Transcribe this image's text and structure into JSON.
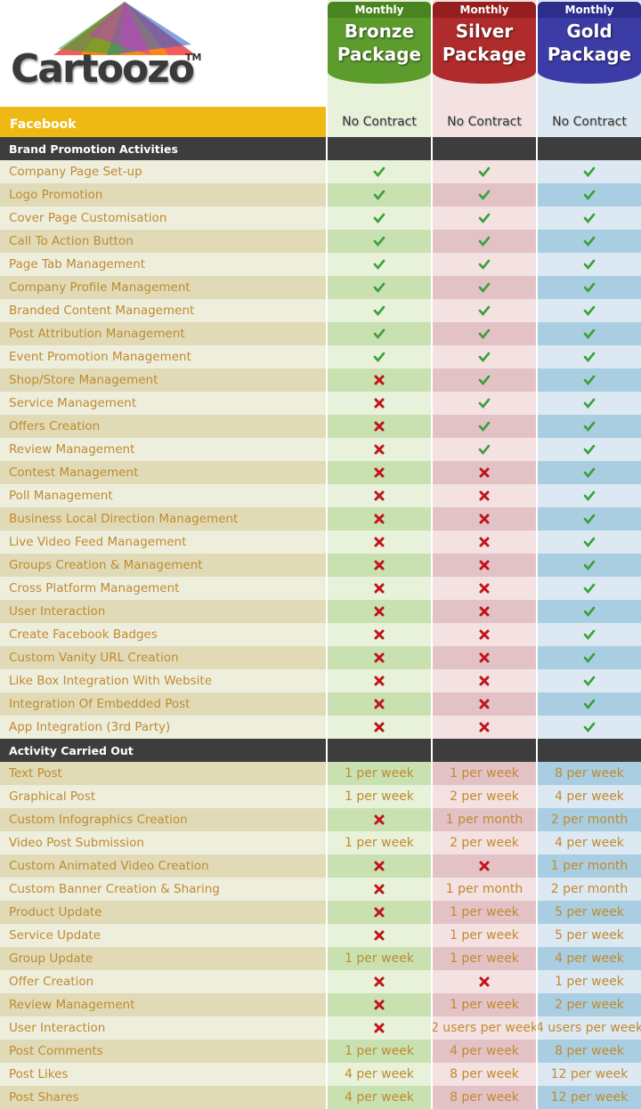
{
  "logo": {
    "name": "Cartoozo",
    "mark": "TM"
  },
  "platform": "Facebook",
  "packages": [
    {
      "period": "Monthly",
      "name": "Bronze Package",
      "contract": "No Contract"
    },
    {
      "period": "Monthly",
      "name": "Silver Package",
      "contract": "No Contract"
    },
    {
      "period": "Monthly",
      "name": "Gold Package",
      "contract": "No Contract"
    }
  ],
  "sections": [
    {
      "title": "Brand Promotion Activities",
      "rows": [
        {
          "label": "Company Page Set-up",
          "cells": [
            true,
            true,
            true
          ]
        },
        {
          "label": "Logo Promotion",
          "cells": [
            true,
            true,
            true
          ]
        },
        {
          "label": "Cover Page Customisation",
          "cells": [
            true,
            true,
            true
          ]
        },
        {
          "label": "Call To Action Button",
          "cells": [
            true,
            true,
            true
          ]
        },
        {
          "label": "Page Tab Management",
          "cells": [
            true,
            true,
            true
          ]
        },
        {
          "label": "Company Profile Management",
          "cells": [
            true,
            true,
            true
          ]
        },
        {
          "label": "Branded Content Management",
          "cells": [
            true,
            true,
            true
          ]
        },
        {
          "label": "Post Attribution Management",
          "cells": [
            true,
            true,
            true
          ]
        },
        {
          "label": "Event Promotion Management",
          "cells": [
            true,
            true,
            true
          ]
        },
        {
          "label": "Shop/Store Management",
          "cells": [
            false,
            true,
            true
          ]
        },
        {
          "label": "Service Management",
          "cells": [
            false,
            true,
            true
          ]
        },
        {
          "label": "Offers Creation",
          "cells": [
            false,
            true,
            true
          ]
        },
        {
          "label": "Review Management",
          "cells": [
            false,
            true,
            true
          ]
        },
        {
          "label": "Contest Management",
          "cells": [
            false,
            false,
            true
          ]
        },
        {
          "label": "Poll Management",
          "cells": [
            false,
            false,
            true
          ]
        },
        {
          "label": "Business Local Direction Management",
          "cells": [
            false,
            false,
            true
          ]
        },
        {
          "label": "Live Video Feed Management",
          "cells": [
            false,
            false,
            true
          ]
        },
        {
          "label": "Groups Creation & Management",
          "cells": [
            false,
            false,
            true
          ]
        },
        {
          "label": "Cross Platform Management",
          "cells": [
            false,
            false,
            true
          ]
        },
        {
          "label": "User Interaction",
          "cells": [
            false,
            false,
            true
          ]
        },
        {
          "label": "Create Facebook Badges",
          "cells": [
            false,
            false,
            true
          ]
        },
        {
          "label": "Custom Vanity URL Creation",
          "cells": [
            false,
            false,
            true
          ]
        },
        {
          "label": "Like Box Integration With Website",
          "cells": [
            false,
            false,
            true
          ]
        },
        {
          "label": "Integration Of Embedded Post",
          "cells": [
            false,
            false,
            true
          ]
        },
        {
          "label": "App Integration (3rd Party)",
          "cells": [
            false,
            false,
            true
          ]
        }
      ]
    },
    {
      "title": "Activity Carried Out",
      "rows": [
        {
          "label": "Text Post",
          "cells": [
            "1 per week",
            "1 per week",
            "8 per week"
          ]
        },
        {
          "label": "Graphical Post",
          "cells": [
            "1 per week",
            "2 per week",
            "4 per week"
          ]
        },
        {
          "label": "Custom Infographics Creation",
          "cells": [
            false,
            "1 per month",
            "2 per month"
          ]
        },
        {
          "label": "Video Post Submission",
          "cells": [
            "1 per week",
            "2 per week",
            "4 per week"
          ]
        },
        {
          "label": "Custom Animated Video Creation",
          "cells": [
            false,
            false,
            "1 per month"
          ]
        },
        {
          "label": "Custom Banner Creation & Sharing",
          "cells": [
            false,
            "1 per month",
            "2 per month"
          ]
        },
        {
          "label": "Product Update",
          "cells": [
            false,
            "1 per week",
            "5 per week"
          ]
        },
        {
          "label": "Service Update",
          "cells": [
            false,
            "1 per week",
            "5 per week"
          ]
        },
        {
          "label": "Group Update",
          "cells": [
            "1 per week",
            "1 per week",
            "4 per week"
          ]
        },
        {
          "label": "Offer Creation",
          "cells": [
            false,
            false,
            "1 per week"
          ]
        },
        {
          "label": "Review Management",
          "cells": [
            false,
            "1 per week",
            "2 per week"
          ]
        },
        {
          "label": "User Interaction",
          "cells": [
            false,
            "2 users per week",
            "4 users per week"
          ]
        },
        {
          "label": "Post Comments",
          "cells": [
            "1 per week",
            "4 per week",
            "8 per week"
          ]
        },
        {
          "label": "Post Likes",
          "cells": [
            "4 per week",
            "8 per week",
            "12 per week"
          ]
        },
        {
          "label": "Post Shares",
          "cells": [
            "4 per week",
            "8 per week",
            "12 per week"
          ]
        }
      ]
    }
  ]
}
